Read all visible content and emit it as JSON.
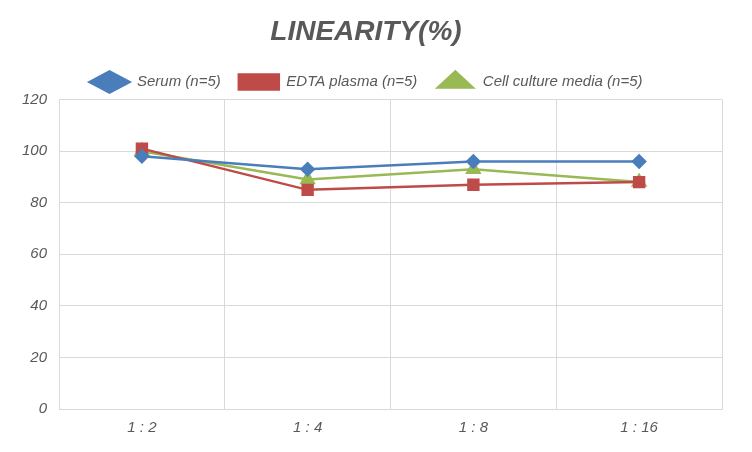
{
  "chart_data": {
    "type": "line",
    "title": "LINEARITY(%)",
    "categories": [
      "1 : 2",
      "1 : 4",
      "1 : 8",
      "1 : 16"
    ],
    "series": [
      {
        "name": "Serum (n=5)",
        "color": "#4a7ebb",
        "marker": "diamond",
        "values": [
          98,
          93,
          96,
          96
        ]
      },
      {
        "name": "EDTA plasma (n=5)",
        "color": "#be4b48",
        "marker": "square",
        "values": [
          101,
          85,
          87,
          88
        ]
      },
      {
        "name": "Cell culture media (n=5)",
        "color": "#98b954",
        "marker": "triangle",
        "values": [
          100,
          89,
          93,
          88
        ]
      }
    ],
    "ylim": [
      0,
      120
    ],
    "yticks": [
      0,
      20,
      40,
      60,
      80,
      100,
      120
    ],
    "grid": true,
    "legend": "top"
  }
}
